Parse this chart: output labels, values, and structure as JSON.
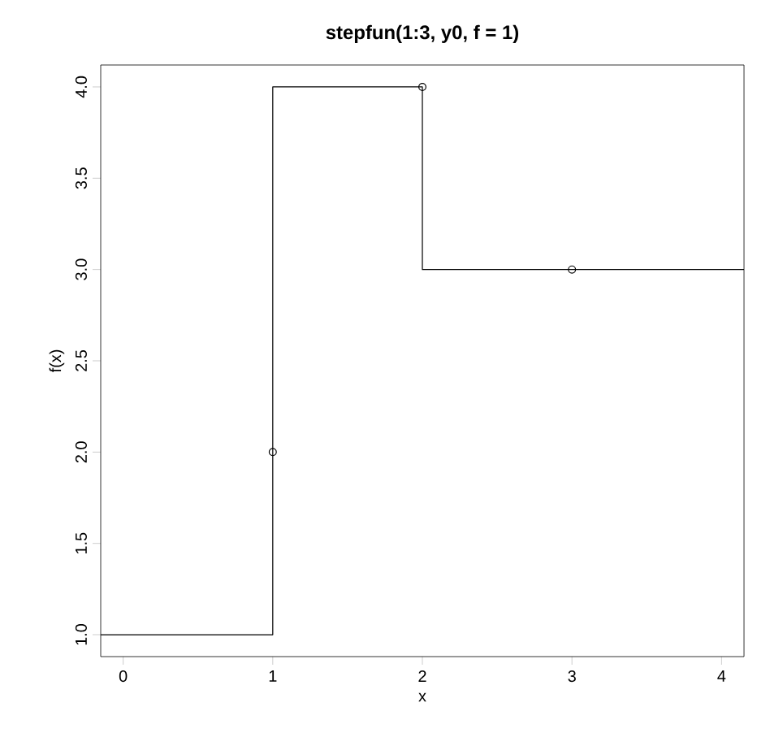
{
  "chart_data": {
    "type": "step",
    "title": "stepfun(1:3, y0, f = 1)",
    "xlabel": "x",
    "ylabel": "f(x)",
    "series": [
      {
        "x": [
          -0.15,
          1,
          2,
          3,
          4.15
        ],
        "values": [
          1,
          4,
          3,
          3,
          3
        ],
        "color": "#000000",
        "marker": "none"
      },
      {
        "type": "scatter",
        "x": [
          1,
          2,
          3
        ],
        "values": [
          2,
          4,
          3
        ],
        "color": "#000000",
        "marker": "circle"
      }
    ],
    "xlim": [
      -0.15,
      4.15
    ],
    "ylim": [
      0.88,
      4.12
    ],
    "xticks": [
      0,
      1,
      2,
      3,
      4
    ],
    "yticks": [
      {
        "value": 1,
        "label": "1.0"
      },
      1.5,
      {
        "value": 2,
        "label": "2.0"
      },
      2.5,
      {
        "value": 3,
        "label": "3.0"
      },
      3.5,
      {
        "value": 4,
        "label": "4.0"
      }
    ],
    "grid": false
  }
}
